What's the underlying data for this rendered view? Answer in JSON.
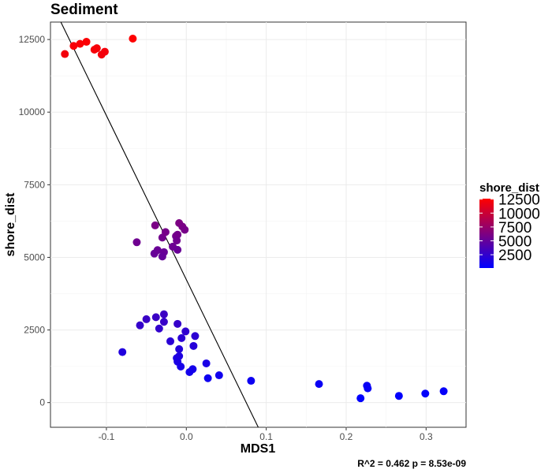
{
  "chart_data": {
    "type": "scatter",
    "title": "Sediment",
    "xlabel": "MDS1",
    "ylabel": "shore_dist",
    "xlim": [
      -0.17,
      0.35
    ],
    "ylim": [
      -850,
      13100
    ],
    "xticks": [
      -0.1,
      0.0,
      0.1,
      0.2,
      0.3
    ],
    "xtick_labels": [
      "-0.1",
      "0.0",
      "0.1",
      "0.2",
      "0.3"
    ],
    "yticks": [
      0,
      2500,
      5000,
      7500,
      10000,
      12500
    ],
    "ytick_labels": [
      "0",
      "2500",
      "5000",
      "7500",
      "10000",
      "12500"
    ],
    "grid": true,
    "legend": {
      "title": "shore_dist",
      "placement": "right",
      "labels": [
        "12500",
        "10000",
        "7500",
        "5000",
        "2500"
      ],
      "values": [
        12500,
        10000,
        7500,
        5000,
        2500
      ]
    },
    "color_scale": {
      "low": "#0000ff",
      "high": "#ff0000",
      "min": 100,
      "max": 12600
    },
    "regression_line": {
      "x1": -0.157,
      "y1": 13100,
      "x2": 0.09,
      "y2": -850
    },
    "caption": "R^2 =  0.462 p = 8.53e-09",
    "points": [
      {
        "x": -0.152,
        "y": 12000
      },
      {
        "x": -0.141,
        "y": 12280
      },
      {
        "x": -0.133,
        "y": 12350
      },
      {
        "x": -0.125,
        "y": 12420
      },
      {
        "x": -0.115,
        "y": 12150
      },
      {
        "x": -0.112,
        "y": 12200
      },
      {
        "x": -0.106,
        "y": 11980
      },
      {
        "x": -0.102,
        "y": 12080
      },
      {
        "x": -0.067,
        "y": 12530
      },
      {
        "x": -0.062,
        "y": 5520
      },
      {
        "x": -0.039,
        "y": 6100
      },
      {
        "x": -0.04,
        "y": 5130
      },
      {
        "x": -0.036,
        "y": 5250
      },
      {
        "x": -0.03,
        "y": 5680
      },
      {
        "x": -0.026,
        "y": 5870
      },
      {
        "x": -0.028,
        "y": 5180
      },
      {
        "x": -0.03,
        "y": 5030
      },
      {
        "x": -0.017,
        "y": 5370
      },
      {
        "x": -0.013,
        "y": 5730
      },
      {
        "x": -0.011,
        "y": 5780
      },
      {
        "x": -0.012,
        "y": 5580
      },
      {
        "x": -0.011,
        "y": 5260
      },
      {
        "x": -0.009,
        "y": 6180
      },
      {
        "x": -0.005,
        "y": 6060
      },
      {
        "x": -0.002,
        "y": 5950
      },
      {
        "x": -0.08,
        "y": 1740
      },
      {
        "x": -0.058,
        "y": 2660
      },
      {
        "x": -0.05,
        "y": 2870
      },
      {
        "x": -0.038,
        "y": 2940
      },
      {
        "x": -0.034,
        "y": 2550
      },
      {
        "x": -0.028,
        "y": 3040
      },
      {
        "x": -0.028,
        "y": 2780
      },
      {
        "x": -0.02,
        "y": 2110
      },
      {
        "x": -0.011,
        "y": 2710
      },
      {
        "x": -0.006,
        "y": 2220
      },
      {
        "x": -0.001,
        "y": 2450
      },
      {
        "x": 0.011,
        "y": 2290
      },
      {
        "x": -0.009,
        "y": 1840
      },
      {
        "x": -0.012,
        "y": 1530
      },
      {
        "x": -0.009,
        "y": 1600
      },
      {
        "x": -0.011,
        "y": 1410
      },
      {
        "x": -0.007,
        "y": 1240
      },
      {
        "x": 0.009,
        "y": 1950
      },
      {
        "x": 0.008,
        "y": 1150
      },
      {
        "x": 0.004,
        "y": 1050
      },
      {
        "x": 0.025,
        "y": 1350
      },
      {
        "x": 0.027,
        "y": 840
      },
      {
        "x": 0.041,
        "y": 940
      },
      {
        "x": 0.081,
        "y": 750
      },
      {
        "x": 0.166,
        "y": 640
      },
      {
        "x": 0.218,
        "y": 150
      },
      {
        "x": 0.226,
        "y": 580
      },
      {
        "x": 0.227,
        "y": 490
      },
      {
        "x": 0.266,
        "y": 230
      },
      {
        "x": 0.299,
        "y": 310
      },
      {
        "x": 0.322,
        "y": 390
      }
    ]
  }
}
